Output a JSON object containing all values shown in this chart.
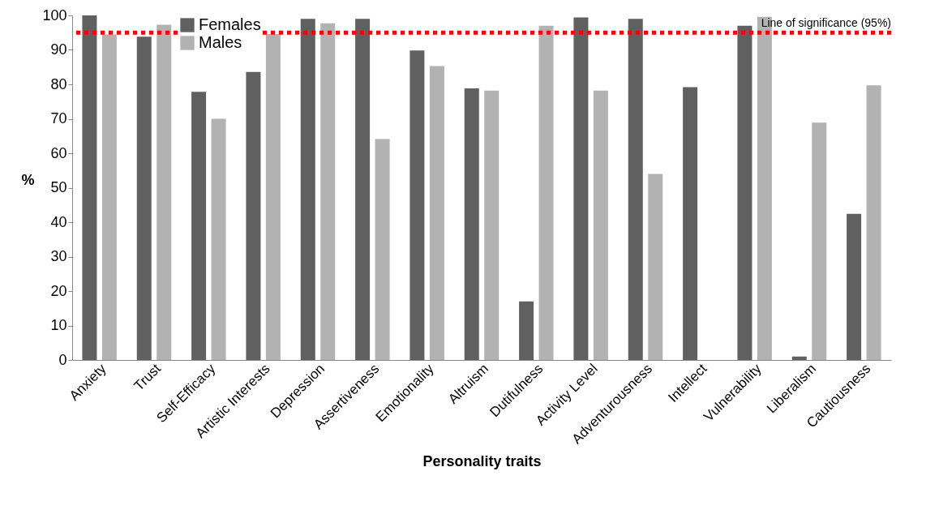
{
  "chart_data": {
    "type": "bar",
    "xlabel": "Personality traits",
    "ylabel": "%",
    "categories": [
      "Anxiety",
      "Trust",
      "Self-Efficacy",
      "Artistic Interests",
      "Depression",
      "Assertiveness",
      "Emotionality",
      "Altruism",
      "Dutifulness",
      "Activity Level",
      "Adventurousness",
      "Intellect",
      "Vulnerability",
      "Liberalism",
      "Cautiousness"
    ],
    "series": [
      {
        "name": "Females",
        "color": "#606060",
        "values": [
          100,
          93.8,
          77.8,
          83.6,
          99,
          99,
          89.8,
          78.8,
          17,
          99.4,
          99,
          79.2,
          97,
          1,
          42.4
        ]
      },
      {
        "name": "Males",
        "color": "#b2b2b2",
        "values": [
          94.5,
          97.3,
          70,
          94.6,
          97.7,
          64.1,
          85.3,
          78.2,
          97,
          78.2,
          54,
          null,
          99.6,
          68.9,
          79.7
        ]
      }
    ],
    "ylim": [
      0,
      100
    ],
    "yticks": [
      0,
      10,
      20,
      30,
      40,
      50,
      60,
      70,
      80,
      90,
      100
    ],
    "grid": false,
    "legend": "top left",
    "ref_lines": [
      {
        "axis": "y",
        "value": 95,
        "label": "Line of significance (95%)",
        "color": "#ff0000",
        "line_style": "dotted"
      }
    ]
  }
}
